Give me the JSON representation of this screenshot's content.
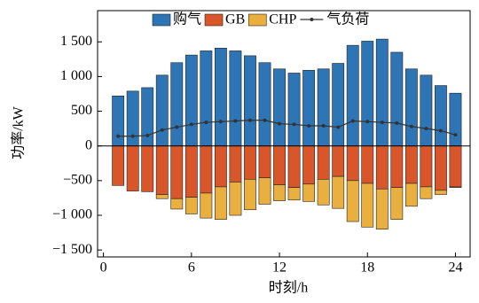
{
  "chart_data": {
    "type": "bar",
    "x_label": "时刻/h",
    "y_label": "功率/kW",
    "x": [
      1,
      2,
      3,
      4,
      5,
      6,
      7,
      8,
      9,
      10,
      11,
      12,
      13,
      14,
      15,
      16,
      17,
      18,
      19,
      20,
      21,
      22,
      23,
      24
    ],
    "xlim": [
      -0.4,
      25
    ],
    "xticks": [
      0,
      6,
      12,
      18,
      24
    ],
    "ylim": [
      -1600,
      1950
    ],
    "yticks": [
      {
        "value": -1500,
        "label": "−1 500"
      },
      {
        "value": -1000,
        "label": "−1 000"
      },
      {
        "value": -500,
        "label": "−500"
      },
      0,
      500,
      {
        "value": 1000,
        "label": "1 000"
      },
      {
        "value": 1500,
        "label": "1 500"
      }
    ],
    "series": [
      {
        "name": "购气",
        "color": "#2e75b6",
        "kind": "bar",
        "values": [
          720,
          790,
          840,
          1020,
          1200,
          1310,
          1370,
          1410,
          1370,
          1300,
          1200,
          1110,
          1050,
          1090,
          1110,
          1190,
          1450,
          1510,
          1540,
          1350,
          1110,
          1020,
          870,
          760
        ]
      },
      {
        "name": "GB",
        "color": "#d9562b",
        "kind": "bar",
        "values": [
          -570,
          -650,
          -660,
          -700,
          -760,
          -740,
          -680,
          -590,
          -520,
          -480,
          -460,
          -560,
          -600,
          -550,
          -480,
          -440,
          -500,
          -540,
          -620,
          -600,
          -540,
          -590,
          -640,
          -590
        ]
      },
      {
        "name": "CHP",
        "color": "#e9b040",
        "kind": "bar",
        "values": [
          0,
          0,
          0,
          -60,
          -150,
          -240,
          -360,
          -470,
          -480,
          -440,
          -380,
          -230,
          -180,
          -250,
          -370,
          -460,
          -590,
          -630,
          -580,
          -460,
          -330,
          -170,
          -60,
          -10
        ]
      },
      {
        "name": "气负荷",
        "color": "#333333",
        "kind": "line",
        "values": [
          140,
          140,
          150,
          230,
          270,
          310,
          340,
          350,
          360,
          370,
          370,
          320,
          310,
          290,
          290,
          270,
          360,
          350,
          340,
          330,
          280,
          250,
          220,
          160
        ]
      }
    ]
  }
}
